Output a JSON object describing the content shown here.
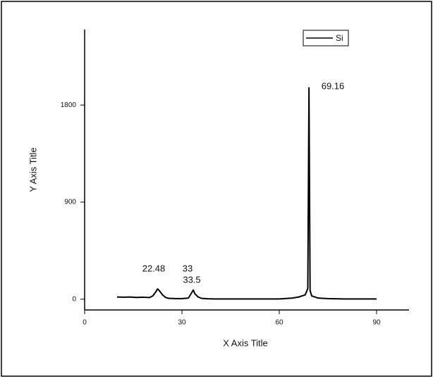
{
  "chart_data": {
    "type": "line",
    "x_label": "X Axis Title",
    "y_label": "Y Axis Title",
    "x": [
      10,
      12,
      14,
      16,
      18,
      20,
      21,
      22,
      22.48,
      23,
      24,
      25,
      26,
      28,
      30,
      32,
      33,
      33.5,
      34,
      35,
      36,
      38,
      40,
      45,
      50,
      55,
      60,
      64,
      66,
      68,
      68.8,
      69.16,
      69.5,
      70,
      72,
      75,
      80,
      85,
      90
    ],
    "series": [
      {
        "name": "Si",
        "color": "#000000",
        "values": [
          20,
          18,
          20,
          16,
          18,
          15,
          30,
          70,
          95,
          80,
          40,
          15,
          8,
          5,
          5,
          10,
          60,
          85,
          50,
          20,
          8,
          4,
          2,
          2,
          2,
          2,
          2,
          10,
          20,
          40,
          100,
          1960,
          80,
          30,
          10,
          5,
          2,
          2,
          2
        ]
      }
    ],
    "annotations": [
      "22.48",
      "33",
      "33.5",
      "69.16"
    ],
    "xlim": [
      0,
      100
    ],
    "xticks": [
      0,
      30,
      60,
      90
    ],
    "ylim": [
      -100,
      2500
    ],
    "yticks": [
      0,
      900,
      1800
    ],
    "legend": "upper right"
  }
}
